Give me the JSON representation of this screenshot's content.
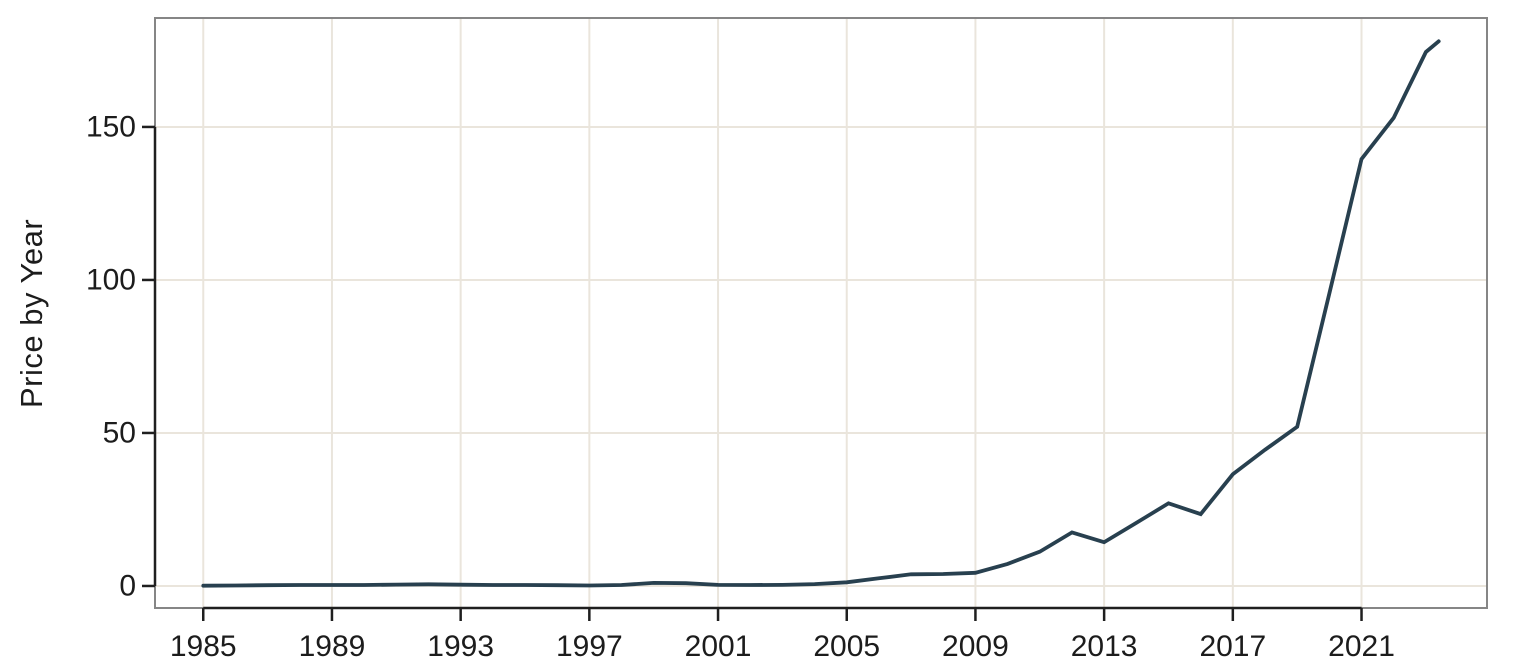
{
  "figure": {
    "ylabel": "Price by Year"
  },
  "colors": {
    "background": "#ffffff",
    "line": "#28404f",
    "grid": "#eae5dc",
    "panel_border": "#868686",
    "axis": "#1f1f1f",
    "label": "#1c1c1c"
  },
  "chart_data": {
    "type": "line",
    "title": "",
    "xlabel": "",
    "ylabel": "Price by Year",
    "legend": "none",
    "grid": "on",
    "x_ticks": [
      1985,
      1989,
      1993,
      1997,
      2001,
      2005,
      2009,
      2013,
      2017,
      2021
    ],
    "y_ticks": [
      0,
      50,
      100,
      150
    ],
    "xlim": [
      1983.5,
      2024.9
    ],
    "ylim": [
      -7.2,
      185.6
    ],
    "series": [
      {
        "name": "price",
        "x": [
          1985,
          1986,
          1987,
          1988,
          1989,
          1990,
          1991,
          1992,
          1993,
          1994,
          1995,
          1996,
          1997,
          1998,
          1999,
          2000,
          2001,
          2002,
          2003,
          2004,
          2005,
          2006,
          2007,
          2008,
          2009,
          2010,
          2011,
          2012,
          2013,
          2014,
          2015,
          2016,
          2017,
          2018,
          2019,
          2020,
          2021,
          2022,
          2023,
          2023.4
        ],
        "y": [
          0.1,
          0.15,
          0.25,
          0.3,
          0.3,
          0.3,
          0.45,
          0.55,
          0.4,
          0.3,
          0.3,
          0.25,
          0.15,
          0.3,
          1.0,
          0.9,
          0.35,
          0.3,
          0.35,
          0.6,
          1.2,
          2.5,
          3.8,
          3.9,
          4.3,
          7.2,
          11.2,
          17.5,
          14.3,
          20.6,
          27.0,
          23.5,
          36.5,
          44.5,
          52.0,
          95.5,
          139.5,
          153.0,
          174.5,
          178.0
        ]
      }
    ]
  }
}
